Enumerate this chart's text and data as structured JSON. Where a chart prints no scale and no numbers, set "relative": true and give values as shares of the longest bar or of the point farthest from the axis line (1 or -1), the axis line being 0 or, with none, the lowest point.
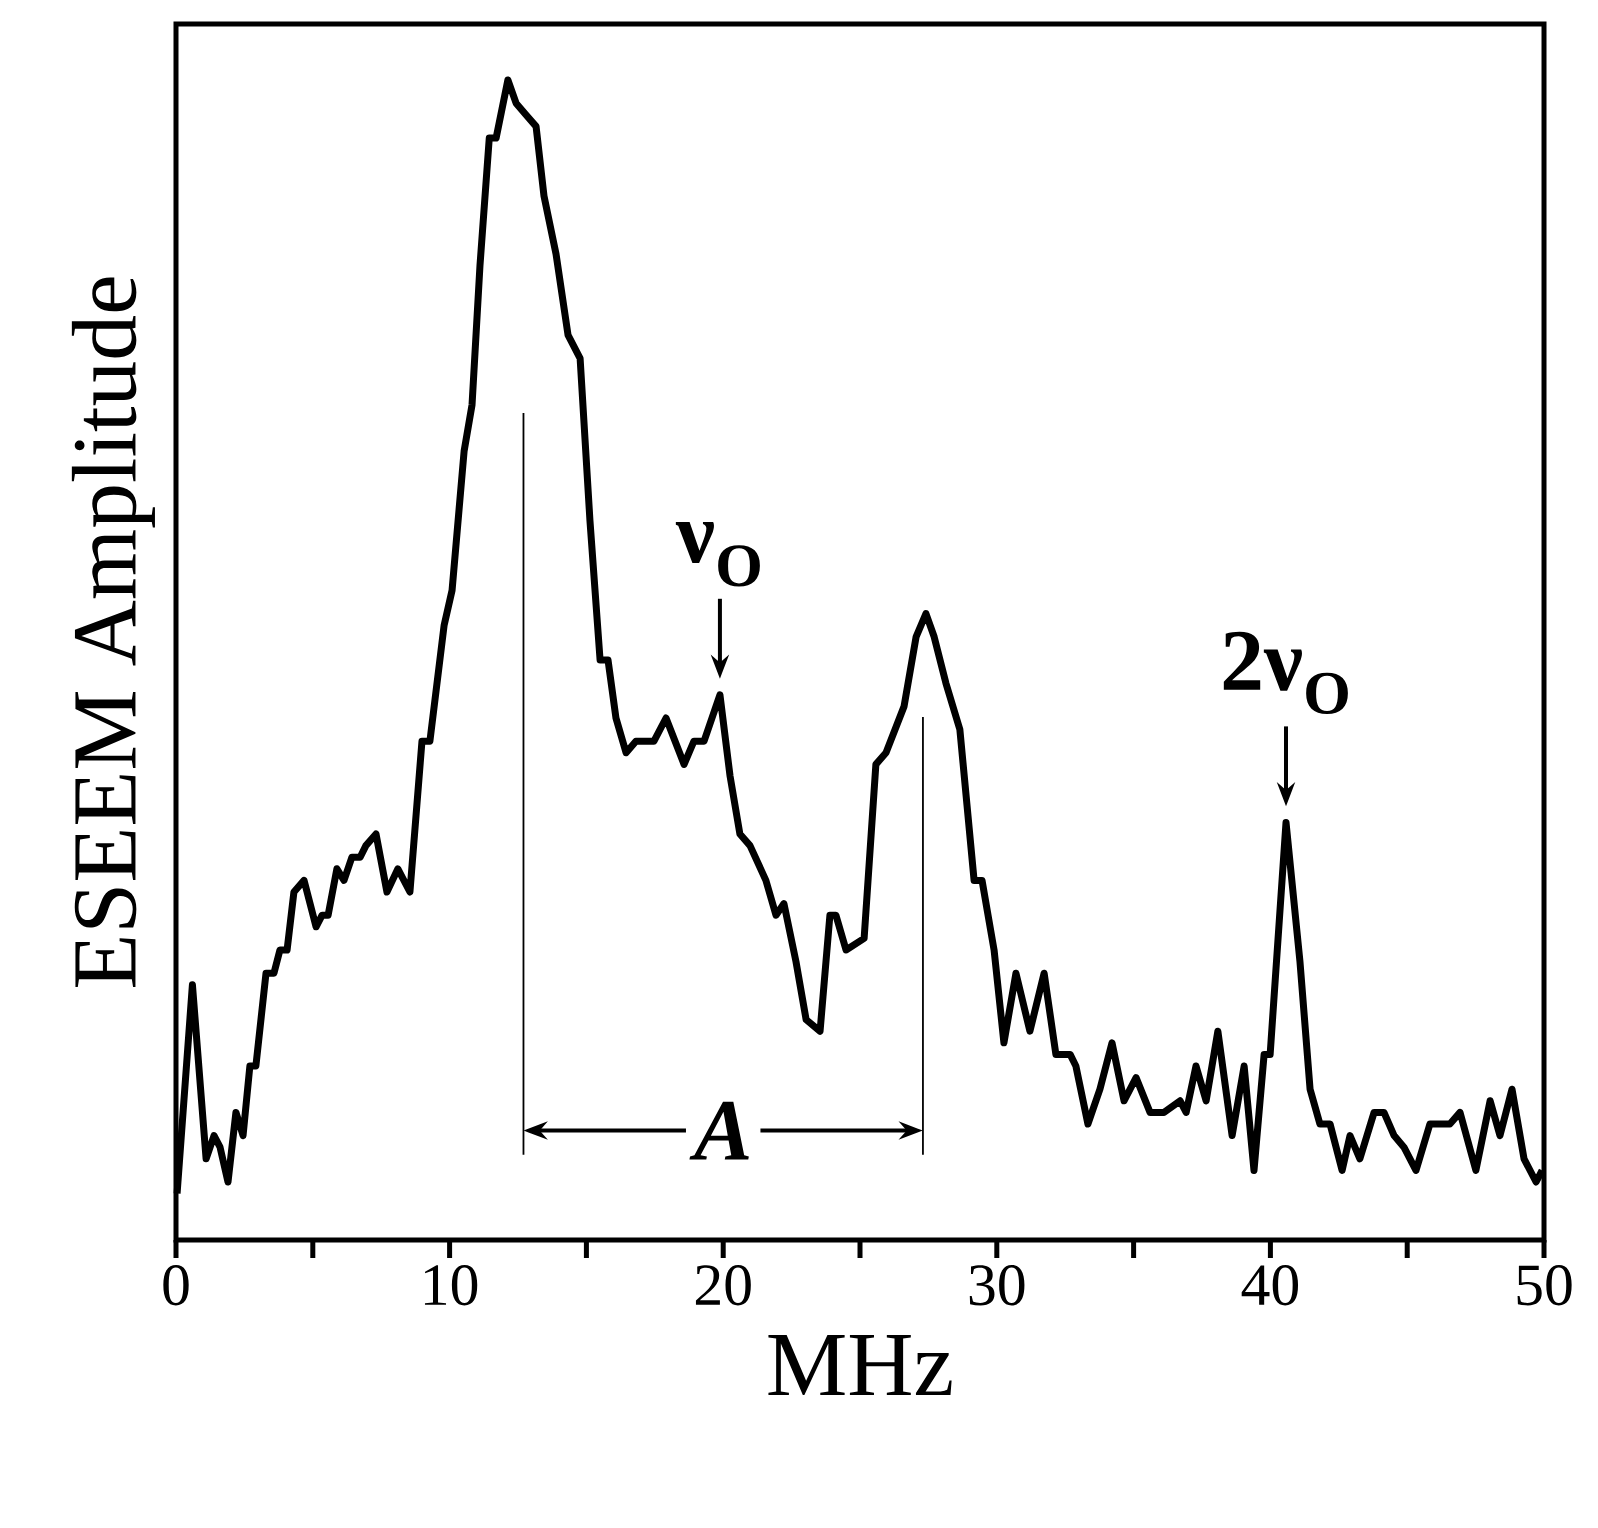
{
  "chart_data": {
    "type": "line",
    "xlabel": "MHz",
    "ylabel": "ESEEM Amplitude",
    "relative": true,
    "color": "#000000",
    "tick_labels": "x",
    "xlim": [
      0,
      50
    ],
    "xticks": [
      0,
      {
        "value": 5,
        "label": null
      },
      10,
      {
        "value": 15,
        "label": null
      },
      20,
      {
        "value": 25,
        "label": null
      },
      30,
      {
        "value": 35,
        "label": null
      },
      40,
      {
        "value": 45,
        "label": null
      },
      50
    ],
    "x": [
      0.04,
      0.6,
      1.1,
      1.39,
      1.61,
      1.9,
      2.19,
      2.45,
      2.7,
      2.92,
      3.29,
      3.58,
      3.8,
      4.06,
      4.31,
      4.68,
      5.12,
      5.34,
      5.56,
      5.88,
      6.14,
      6.43,
      6.73,
      6.94,
      7.31,
      7.71,
      8.11,
      8.55,
      8.99,
      9.28,
      9.8,
      10.09,
      10.53,
      10.82,
      11.11,
      11.45,
      11.7,
      12.13,
      12.43,
      12.79,
      13.16,
      13.45,
      13.89,
      14.33,
      14.77,
      15.13,
      15.5,
      15.79,
      16.08,
      16.45,
      16.81,
      17.47,
      17.91,
      18.57,
      18.93,
      19.3,
      19.88,
      20.25,
      20.61,
      20.98,
      21.56,
      21.93,
      22.22,
      22.66,
      23.03,
      23.54,
      23.9,
      24.12,
      24.49,
      25.15,
      25.58,
      25.95,
      26.61,
      27.05,
      27.41,
      27.71,
      28.14,
      28.65,
      29.17,
      29.46,
      29.9,
      30.26,
      30.7,
      31.21,
      31.73,
      32.16,
      32.68,
      32.89,
      33.33,
      33.77,
      34.21,
      34.65,
      35.09,
      35.6,
      36.11,
      36.7,
      36.92,
      37.28,
      37.65,
      38.08,
      38.6,
      39.04,
      39.4,
      39.77,
      39.99,
      40.57,
      41.08,
      41.45,
      41.81,
      42.18,
      42.62,
      42.91,
      43.27,
      43.79,
      44.15,
      44.52,
      44.88,
      45.32,
      45.83,
      46.2,
      46.56,
      46.93,
      47.51,
      48.03,
      48.39,
      48.83,
      49.27,
      49.71,
      49.93
    ],
    "values": [
      0.04,
      0.22,
      0.07,
      0.09,
      0.08,
      0.05,
      0.11,
      0.09,
      0.15,
      0.15,
      0.23,
      0.23,
      0.25,
      0.25,
      0.3,
      0.31,
      0.27,
      0.28,
      0.28,
      0.32,
      0.31,
      0.33,
      0.33,
      0.34,
      0.35,
      0.3,
      0.32,
      0.3,
      0.43,
      0.43,
      0.53,
      0.56,
      0.68,
      0.72,
      0.84,
      0.95,
      0.95,
      1,
      0.98,
      0.97,
      0.96,
      0.9,
      0.85,
      0.78,
      0.76,
      0.62,
      0.5,
      0.5,
      0.45,
      0.42,
      0.43,
      0.43,
      0.45,
      0.41,
      0.43,
      0.43,
      0.47,
      0.4,
      0.35,
      0.34,
      0.31,
      0.28,
      0.29,
      0.24,
      0.19,
      0.18,
      0.28,
      0.28,
      0.25,
      0.26,
      0.41,
      0.42,
      0.46,
      0.52,
      0.54,
      0.52,
      0.48,
      0.44,
      0.31,
      0.31,
      0.25,
      0.17,
      0.23,
      0.18,
      0.23,
      0.16,
      0.16,
      0.15,
      0.1,
      0.13,
      0.17,
      0.12,
      0.14,
      0.11,
      0.11,
      0.12,
      0.11,
      0.15,
      0.12,
      0.18,
      0.09,
      0.15,
      0.06,
      0.16,
      0.16,
      0.36,
      0.24,
      0.13,
      0.1,
      0.1,
      0.06,
      0.09,
      0.07,
      0.11,
      0.11,
      0.09,
      0.08,
      0.06,
      0.1,
      0.1,
      0.1,
      0.11,
      0.06,
      0.12,
      0.09,
      0.13,
      0.07,
      0.05,
      0.06
    ],
    "ref_lines": [
      {
        "axis": "x",
        "value": 12.7
      },
      {
        "axis": "x",
        "value": 27.3
      }
    ],
    "annotations": [
      {
        "text": "ν$_{O}$",
        "x": 19.88,
        "y": 0.47
      },
      {
        "text": "2ν$_{O}$",
        "x": 40.57,
        "y": 0.36
      },
      "A"
    ]
  }
}
